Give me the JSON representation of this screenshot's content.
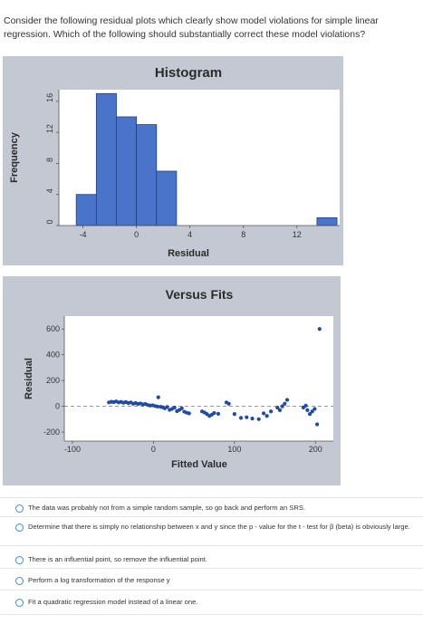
{
  "question": "Consider the following residual plots which clearly show model violations for simple linear regression. Which of the following should substantially correct these model violations?",
  "options": [
    {
      "label": "The data was probably not from a simple random sample, so go back and perform an SRS."
    },
    {
      "label": "Determine that there is simply no relationship between x and y since the p - value for the t - test for β (beta) is obviously large."
    },
    {
      "label": "There is an influential point, so remove the influential point."
    },
    {
      "label": "Perform a log transformation of the response y"
    },
    {
      "label": "Fit a quadratic regression model instead of a linear one."
    }
  ],
  "colors": {
    "panel_bg": "#c3c8d3",
    "plot_bg": "#ffffff",
    "bar_fill": "#4a74c9",
    "point_color": "#1f4aa8",
    "radio_border": "#3a8fd1"
  },
  "chart_data": [
    {
      "type": "bar",
      "title": "Histogram",
      "xlabel": "Residual",
      "ylabel": "Frequency",
      "x_ticks": [
        -4,
        0,
        4,
        8,
        12
      ],
      "x_tick_labels": [
        "-4",
        "0",
        "4",
        "8",
        "12"
      ],
      "y_ticks": [
        0,
        4,
        8,
        12,
        16
      ],
      "y_tick_labels": [
        "0",
        "4",
        "8",
        "12",
        "16"
      ],
      "xlim": [
        -5.8,
        15.2
      ],
      "ylim": [
        0,
        17.5
      ],
      "bins": [
        {
          "start": -4.5,
          "end": -3,
          "value": 4
        },
        {
          "start": -3,
          "end": -1.5,
          "value": 17
        },
        {
          "start": -1.5,
          "end": 0,
          "value": 14
        },
        {
          "start": 0,
          "end": 1.5,
          "value": 13
        },
        {
          "start": 1.5,
          "end": 3,
          "value": 7
        },
        {
          "start": 13.5,
          "end": 15,
          "value": 1
        }
      ]
    },
    {
      "type": "scatter",
      "title": "Versus Fits",
      "xlabel": "Fitted Value",
      "ylabel": "Residual",
      "x_ticks": [
        -100,
        0,
        100,
        200
      ],
      "x_tick_labels": [
        "-100",
        "0",
        "100",
        "200"
      ],
      "y_ticks": [
        -200,
        0,
        200,
        400,
        600
      ],
      "y_tick_labels": [
        "-200",
        "0",
        "200",
        "400",
        "600"
      ],
      "xlim": [
        -110,
        222
      ],
      "ylim": [
        -270,
        700
      ],
      "reference_line_y": 0,
      "points": [
        [
          -55,
          30
        ],
        [
          -52,
          35
        ],
        [
          -49,
          32
        ],
        [
          -46,
          38
        ],
        [
          -43,
          30
        ],
        [
          -40,
          34
        ],
        [
          -37,
          28
        ],
        [
          -34,
          33
        ],
        [
          -31,
          25
        ],
        [
          -28,
          30
        ],
        [
          -25,
          20
        ],
        [
          -22,
          25
        ],
        [
          -19,
          18
        ],
        [
          -16,
          22
        ],
        [
          -13,
          15
        ],
        [
          -10,
          18
        ],
        [
          -7,
          10
        ],
        [
          -4,
          6
        ],
        [
          -1,
          8
        ],
        [
          2,
          2
        ],
        [
          5,
          -2
        ],
        [
          6,
          70
        ],
        [
          9,
          -4
        ],
        [
          12,
          -8
        ],
        [
          14,
          -15
        ],
        [
          17,
          -5
        ],
        [
          20,
          -28
        ],
        [
          23,
          -20
        ],
        [
          26,
          -10
        ],
        [
          29,
          -38
        ],
        [
          32,
          -28
        ],
        [
          35,
          -15
        ],
        [
          38,
          -42
        ],
        [
          41,
          -50
        ],
        [
          44,
          -55
        ],
        [
          60,
          -40
        ],
        [
          63,
          -48
        ],
        [
          66,
          -60
        ],
        [
          69,
          -75
        ],
        [
          72,
          -65
        ],
        [
          75,
          -52
        ],
        [
          80,
          -58
        ],
        [
          90,
          30
        ],
        [
          93,
          20
        ],
        [
          100,
          -60
        ],
        [
          108,
          -90
        ],
        [
          115,
          -85
        ],
        [
          122,
          -95
        ],
        [
          130,
          -100
        ],
        [
          136,
          -55
        ],
        [
          140,
          -75
        ],
        [
          145,
          -40
        ],
        [
          153,
          -10
        ],
        [
          156,
          -30
        ],
        [
          159,
          0
        ],
        [
          162,
          20
        ],
        [
          165,
          50
        ],
        [
          185,
          -10
        ],
        [
          188,
          5
        ],
        [
          190,
          -30
        ],
        [
          193,
          -60
        ],
        [
          196,
          -40
        ],
        [
          199,
          -20
        ],
        [
          202,
          -140
        ],
        [
          205,
          600
        ]
      ]
    }
  ]
}
